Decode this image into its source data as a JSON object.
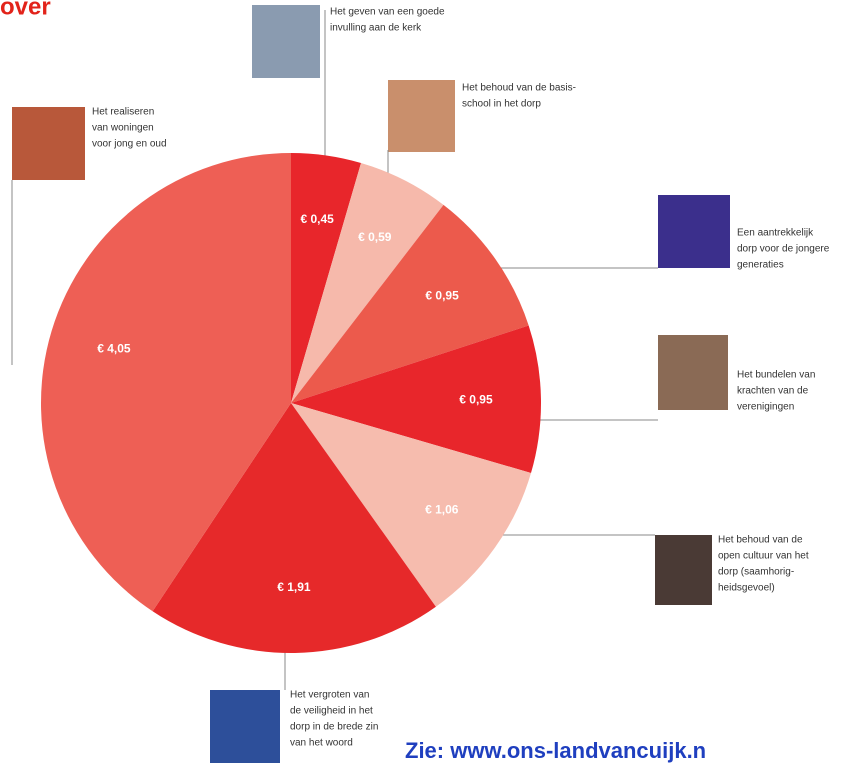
{
  "chart_data": {
    "type": "pie",
    "title": "over",
    "footer": "Zie: www.ons-landvancuijk.n",
    "categories": [
      [
        "Het geven van een goede",
        "invulling aan de kerk"
      ],
      [
        "Het behoud van de basis-",
        "school in het dorp"
      ],
      [
        "Een aantrekkelijk",
        "dorp voor de jongere",
        "generaties"
      ],
      [
        "Het bundelen van",
        "krachten van de",
        "verenigingen"
      ],
      [
        "Het behoud van de",
        "open cultuur van het",
        "dorp (saamhorig-",
        "heidsgevoel)"
      ],
      [
        "Het vergroten van",
        "de veiligheid in het",
        "dorp in de brede zin",
        "van het woord"
      ],
      [
        "Het realiseren",
        "van woningen",
        "voor jong en oud"
      ]
    ],
    "values": [
      0.45,
      0.59,
      0.95,
      0.95,
      1.06,
      1.91,
      4.05
    ],
    "value_labels": [
      "€ 0,45",
      "€ 0,59",
      "€ 0,95",
      "€ 0,95",
      "€ 1,06",
      "€ 1,91",
      "€ 4,05"
    ],
    "colors": [
      "#e8262b",
      "#f6b9ab",
      "#ec5a4c",
      "#e8262b",
      "#f6bcae",
      "#e6292a",
      "#ee5f55"
    ]
  }
}
